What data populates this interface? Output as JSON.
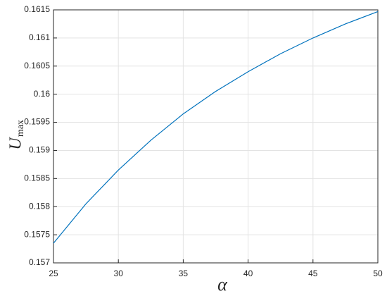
{
  "chart_data": {
    "type": "line",
    "x_label": "α",
    "y_label": "U",
    "y_label_sub": "max",
    "x": [
      25,
      27.5,
      30,
      32.5,
      35,
      37.5,
      40,
      42.5,
      45,
      47.5,
      50
    ],
    "series": [
      {
        "color": "#0072bd",
        "values": [
          0.15735,
          0.15805,
          0.15865,
          0.15918,
          0.15965,
          0.16005,
          0.1604,
          0.16072,
          0.161,
          0.16125,
          0.16147
        ]
      }
    ],
    "xlim": [
      25,
      50
    ],
    "xticks": [
      25,
      30,
      35,
      40,
      45,
      50
    ],
    "ylim": [
      0.157,
      0.1615
    ],
    "yticks": [
      0.157,
      0.1575,
      0.158,
      0.1585,
      0.159,
      0.1595,
      0.16,
      0.1605,
      0.161,
      0.1615
    ],
    "grid": true
  }
}
